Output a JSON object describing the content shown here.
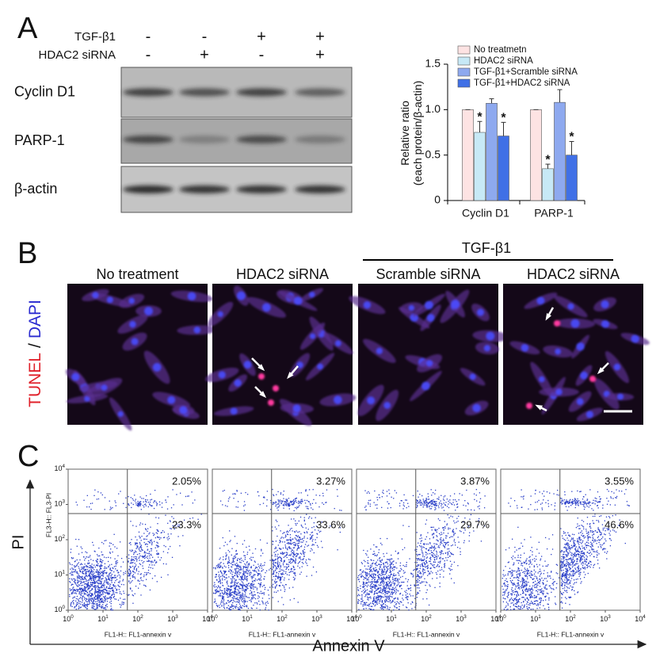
{
  "western_blot": {
    "label": "A",
    "treatments": [
      {
        "name": "TGF-β1",
        "signs": [
          "-",
          "-",
          "+",
          "+"
        ]
      },
      {
        "name": "HDAC2 siRNA",
        "signs": [
          "-",
          "+",
          "-",
          "+"
        ]
      }
    ],
    "blots": [
      "Cyclin D1",
      "PARP-1",
      "β-actin"
    ]
  },
  "chart_data": {
    "type": "bar",
    "y_label": [
      "Relative ratio",
      "(each protein/β-actin)"
    ],
    "categories": [
      "Cyclin D1",
      "PARP-1"
    ],
    "series": [
      {
        "name": "No treatmetn",
        "color": "#fde3e3",
        "values": [
          1.0,
          1.0
        ],
        "errors": [
          0,
          0
        ]
      },
      {
        "name": "HDAC2 siRNA",
        "color": "#c7e9f6",
        "values": [
          0.75,
          0.35
        ],
        "errors": [
          0.12,
          0.05
        ],
        "asterisks": [
          "*",
          "*"
        ]
      },
      {
        "name": "TGF-β1+Scramble siRNA",
        "color": "#8ea9ef",
        "values": [
          1.07,
          1.08
        ],
        "errors": [
          0.05,
          0.14
        ]
      },
      {
        "name": "TGF-β1+HDAC2 siRNA",
        "color": "#4070e6",
        "values": [
          0.71,
          0.5
        ],
        "errors": [
          0.15,
          0.15
        ],
        "asterisks": [
          "*",
          "*"
        ]
      }
    ],
    "ylim": [
      0,
      1.5
    ],
    "yticks": [
      0,
      0.5,
      {
        "value": 1,
        "label": "1.0"
      },
      1.5
    ]
  },
  "microscopy": {
    "label": "B",
    "stain_label": {
      "tunel": "TUNEL",
      "separator": "/",
      "dapi": "DAPI"
    },
    "group_label": "TGF-β1",
    "columns": [
      "No treatment",
      "HDAC2 siRNA",
      "Scramble siRNA",
      "HDAC2 siRNA"
    ]
  },
  "flow_cytometry": {
    "label": "C",
    "y_axis_label": "PI",
    "x_axis_label": "Annexin V",
    "y_channel": "FL3-H:: FL3-PI",
    "x_channel": "FL1-H:: FL1-annexin v",
    "log": true,
    "xlim": [
      1,
      10000
    ],
    "ylim": [
      1,
      10000
    ],
    "ticks": [
      {
        "value": 1,
        "label": "10",
        "exponent": 0
      },
      {
        "value": 10,
        "label": "10",
        "exponent": 1
      },
      {
        "value": 100,
        "label": "10",
        "exponent": 2
      },
      {
        "value": 1000,
        "label": "10",
        "exponent": 3
      },
      {
        "value": 10000,
        "label": "10",
        "exponent": 4
      }
    ],
    "gate": {
      "x": 50,
      "y": 550
    },
    "color": "#2a3fc8",
    "plots": [
      {
        "upper_right": {
          "value": 2.05,
          "label": "2.05%"
        },
        "lower_right": {
          "value": 23.3,
          "label": "23.3%"
        }
      },
      {
        "upper_right": {
          "value": 3.27,
          "label": "3.27%"
        },
        "lower_right": {
          "value": 33.6,
          "label": "33.6%"
        }
      },
      {
        "upper_right": {
          "value": 3.87,
          "label": "3.87%"
        },
        "lower_right": {
          "value": 29.7,
          "label": "29.7%"
        }
      },
      {
        "upper_right": {
          "value": 3.55,
          "label": "3.55%"
        },
        "lower_right": {
          "value": 46.6,
          "label": "46.6%"
        }
      }
    ]
  }
}
